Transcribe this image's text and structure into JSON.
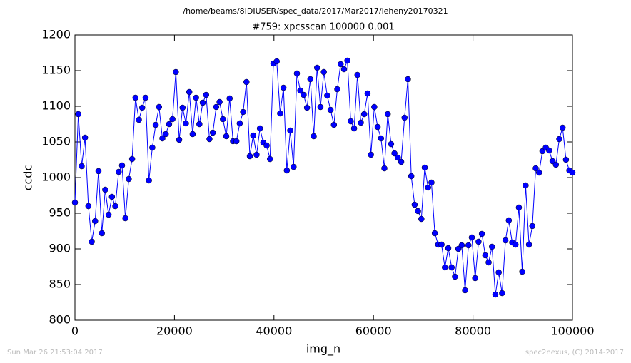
{
  "header": "/home/beams/8IDIUSER/spec_data/2017/Mar2017/leheny20170321",
  "footer_left": "Sun Mar 26 21:53:04 2017",
  "footer_right": "spec2nexus, (C) 2014-2017",
  "chart_data": {
    "type": "line",
    "title": "#759: xpcsscan 100000 0.001",
    "x_label": "img_n",
    "y_label": "ccdc",
    "xlim": [
      0,
      100000
    ],
    "ylim": [
      800,
      1200
    ],
    "xticks": [
      0,
      20000,
      40000,
      60000,
      80000,
      100000
    ],
    "yticks": [
      800,
      850,
      900,
      950,
      1000,
      1050,
      1100,
      1150,
      1200
    ],
    "grid": false,
    "series": [
      {
        "color": "#0000ff",
        "x": [
          0,
          676,
          1352,
          2028,
          2704,
          3380,
          4056,
          4732,
          5408,
          6084,
          6760,
          7436,
          8112,
          8788,
          9464,
          10140,
          10816,
          11492,
          12168,
          12844,
          13520,
          14196,
          14872,
          15548,
          16224,
          16900,
          17576,
          18252,
          18928,
          19604,
          20280,
          20956,
          21632,
          22308,
          22984,
          23660,
          24336,
          25012,
          25688,
          26364,
          27040,
          27716,
          28392,
          29068,
          29744,
          30420,
          31096,
          31772,
          32448,
          33124,
          33800,
          34476,
          35152,
          35828,
          36504,
          37180,
          37856,
          38532,
          39208,
          39884,
          40560,
          41236,
          41912,
          42588,
          43264,
          43940,
          44616,
          45292,
          45968,
          46644,
          47320,
          47996,
          48672,
          49348,
          50024,
          50700,
          51376,
          52052,
          52728,
          53404,
          54080,
          54756,
          55432,
          56108,
          56784,
          57460,
          58136,
          58812,
          59488,
          60164,
          60840,
          61516,
          62192,
          62868,
          63544,
          64220,
          64896,
          65572,
          66248,
          66924,
          67600,
          68276,
          68952,
          69628,
          70304,
          70980,
          71656,
          72332,
          73008,
          73684,
          74360,
          75036,
          75712,
          76388,
          77064,
          77740,
          78416,
          79092,
          79768,
          80444,
          81120,
          81796,
          82472,
          83148,
          83824,
          84500,
          85176,
          85852,
          86528,
          87204,
          87880,
          88556,
          89232,
          89908,
          90584,
          91260,
          91936,
          92612,
          93288,
          93964,
          94640,
          95316,
          95992,
          96668,
          97344,
          98020,
          98696,
          99372,
          100000
        ],
        "values": [
          965,
          1089,
          1016,
          1056,
          960,
          910,
          939,
          1009,
          922,
          983,
          948,
          973,
          960,
          1008,
          1017,
          943,
          998,
          1026,
          1112,
          1081,
          1098,
          1112,
          996,
          1042,
          1074,
          1099,
          1055,
          1061,
          1075,
          1082,
          1148,
          1053,
          1098,
          1076,
          1120,
          1061,
          1112,
          1075,
          1105,
          1116,
          1054,
          1063,
          1099,
          1106,
          1082,
          1058,
          1111,
          1051,
          1051,
          1076,
          1092,
          1134,
          1030,
          1059,
          1032,
          1069,
          1049,
          1045,
          1026,
          1160,
          1163,
          1090,
          1126,
          1010,
          1066,
          1015,
          1146,
          1122,
          1116,
          1098,
          1138,
          1058,
          1154,
          1099,
          1148,
          1115,
          1095,
          1074,
          1124,
          1159,
          1152,
          1164,
          1079,
          1069,
          1144,
          1077,
          1089,
          1118,
          1032,
          1099,
          1071,
          1055,
          1013,
          1089,
          1047,
          1034,
          1028,
          1022,
          1084,
          1138,
          1002,
          962,
          953,
          942,
          1014,
          986,
          993,
          922,
          906,
          906,
          874,
          901,
          874,
          861,
          900,
          905,
          842,
          905,
          916,
          859,
          910,
          921,
          891,
          881,
          903,
          836,
          867,
          838,
          912,
          940,
          909,
          906,
          958,
          868,
          989,
          906,
          932,
          1013,
          1007,
          1037,
          1042,
          1038,
          1023,
          1018,
          1054,
          1070,
          1025,
          1010,
          1007
        ]
      }
    ]
  }
}
